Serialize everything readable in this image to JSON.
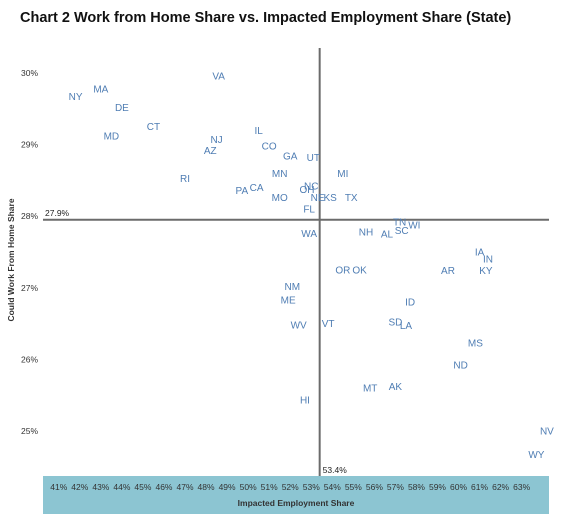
{
  "chart_data": {
    "type": "scatter",
    "title": "Chart 2 Work from Home Share vs. Impacted Employment Share (State)",
    "xlabel": "Impacted Employment Share",
    "ylabel": "Could Work From Home Share",
    "xlim": [
      40.25,
      64.3
    ],
    "ylim": [
      24.37,
      30.35
    ],
    "x_ticks": [
      "41%",
      "42%",
      "43%",
      "44%",
      "45%",
      "46%",
      "47%",
      "48%",
      "49%",
      "50%",
      "51%",
      "52%",
      "53%",
      "54%",
      "55%",
      "56%",
      "57%",
      "58%",
      "59%",
      "60%",
      "61%",
      "62%",
      "63%"
    ],
    "y_ticks": [
      "25%",
      "26%",
      "27%",
      "28%",
      "29%",
      "30%"
    ],
    "reference_lines": {
      "x": 53.4,
      "x_label": "53.4%",
      "y": 27.95,
      "y_label": "27.9%"
    },
    "colors": {
      "points": "#4f7db3",
      "xaxis_band": "#8cc5d2",
      "ref_line": "#6b6b6b"
    },
    "points": [
      {
        "label": "NY",
        "x": 41.8,
        "y": 29.67
      },
      {
        "label": "MA",
        "x": 43.0,
        "y": 29.78
      },
      {
        "label": "DE",
        "x": 44.0,
        "y": 29.52
      },
      {
        "label": "VA",
        "x": 48.6,
        "y": 29.96
      },
      {
        "label": "CT",
        "x": 45.5,
        "y": 29.25
      },
      {
        "label": "MD",
        "x": 43.5,
        "y": 29.12
      },
      {
        "label": "NJ",
        "x": 48.5,
        "y": 29.07
      },
      {
        "label": "AZ",
        "x": 48.2,
        "y": 28.92
      },
      {
        "label": "IL",
        "x": 50.5,
        "y": 29.2
      },
      {
        "label": "CO",
        "x": 51.0,
        "y": 28.98
      },
      {
        "label": "GA",
        "x": 52.0,
        "y": 28.84
      },
      {
        "label": "UT",
        "x": 53.1,
        "y": 28.82
      },
      {
        "label": "MN",
        "x": 51.5,
        "y": 28.6
      },
      {
        "label": "MI",
        "x": 54.5,
        "y": 28.6
      },
      {
        "label": "RI",
        "x": 47.0,
        "y": 28.53
      },
      {
        "label": "CA",
        "x": 50.4,
        "y": 28.4
      },
      {
        "label": "PA",
        "x": 49.7,
        "y": 28.36
      },
      {
        "label": "OH",
        "x": 52.8,
        "y": 28.37
      },
      {
        "label": "NC",
        "x": 53.0,
        "y": 28.42
      },
      {
        "label": "MO",
        "x": 51.5,
        "y": 28.26
      },
      {
        "label": "NE",
        "x": 53.3,
        "y": 28.26
      },
      {
        "label": "KS",
        "x": 53.9,
        "y": 28.26
      },
      {
        "label": "TX",
        "x": 54.9,
        "y": 28.26
      },
      {
        "label": "FL",
        "x": 52.9,
        "y": 28.1
      },
      {
        "label": "TN",
        "x": 57.2,
        "y": 27.92
      },
      {
        "label": "WI",
        "x": 57.9,
        "y": 27.88
      },
      {
        "label": "NH",
        "x": 55.6,
        "y": 27.78
      },
      {
        "label": "AL",
        "x": 56.6,
        "y": 27.75
      },
      {
        "label": "SC",
        "x": 57.3,
        "y": 27.8
      },
      {
        "label": "WA",
        "x": 52.9,
        "y": 27.76
      },
      {
        "label": "IA",
        "x": 61.0,
        "y": 27.5
      },
      {
        "label": "IN",
        "x": 61.4,
        "y": 27.4
      },
      {
        "label": "OR",
        "x": 54.5,
        "y": 27.25
      },
      {
        "label": "OK",
        "x": 55.3,
        "y": 27.25
      },
      {
        "label": "AR",
        "x": 59.5,
        "y": 27.24
      },
      {
        "label": "KY",
        "x": 61.3,
        "y": 27.24
      },
      {
        "label": "NM",
        "x": 52.1,
        "y": 27.02
      },
      {
        "label": "ME",
        "x": 51.9,
        "y": 26.83
      },
      {
        "label": "ID",
        "x": 57.7,
        "y": 26.8
      },
      {
        "label": "WV",
        "x": 52.4,
        "y": 26.48
      },
      {
        "label": "VT",
        "x": 53.8,
        "y": 26.5
      },
      {
        "label": "SD",
        "x": 57.0,
        "y": 26.52
      },
      {
        "label": "LA",
        "x": 57.5,
        "y": 26.47
      },
      {
        "label": "MS",
        "x": 60.8,
        "y": 26.23
      },
      {
        "label": "ND",
        "x": 60.1,
        "y": 25.92
      },
      {
        "label": "MT",
        "x": 55.8,
        "y": 25.6
      },
      {
        "label": "AK",
        "x": 57.0,
        "y": 25.62
      },
      {
        "label": "HI",
        "x": 52.7,
        "y": 25.43
      },
      {
        "label": "NV",
        "x": 64.2,
        "y": 25.0
      },
      {
        "label": "WY",
        "x": 63.7,
        "y": 24.67
      }
    ]
  }
}
